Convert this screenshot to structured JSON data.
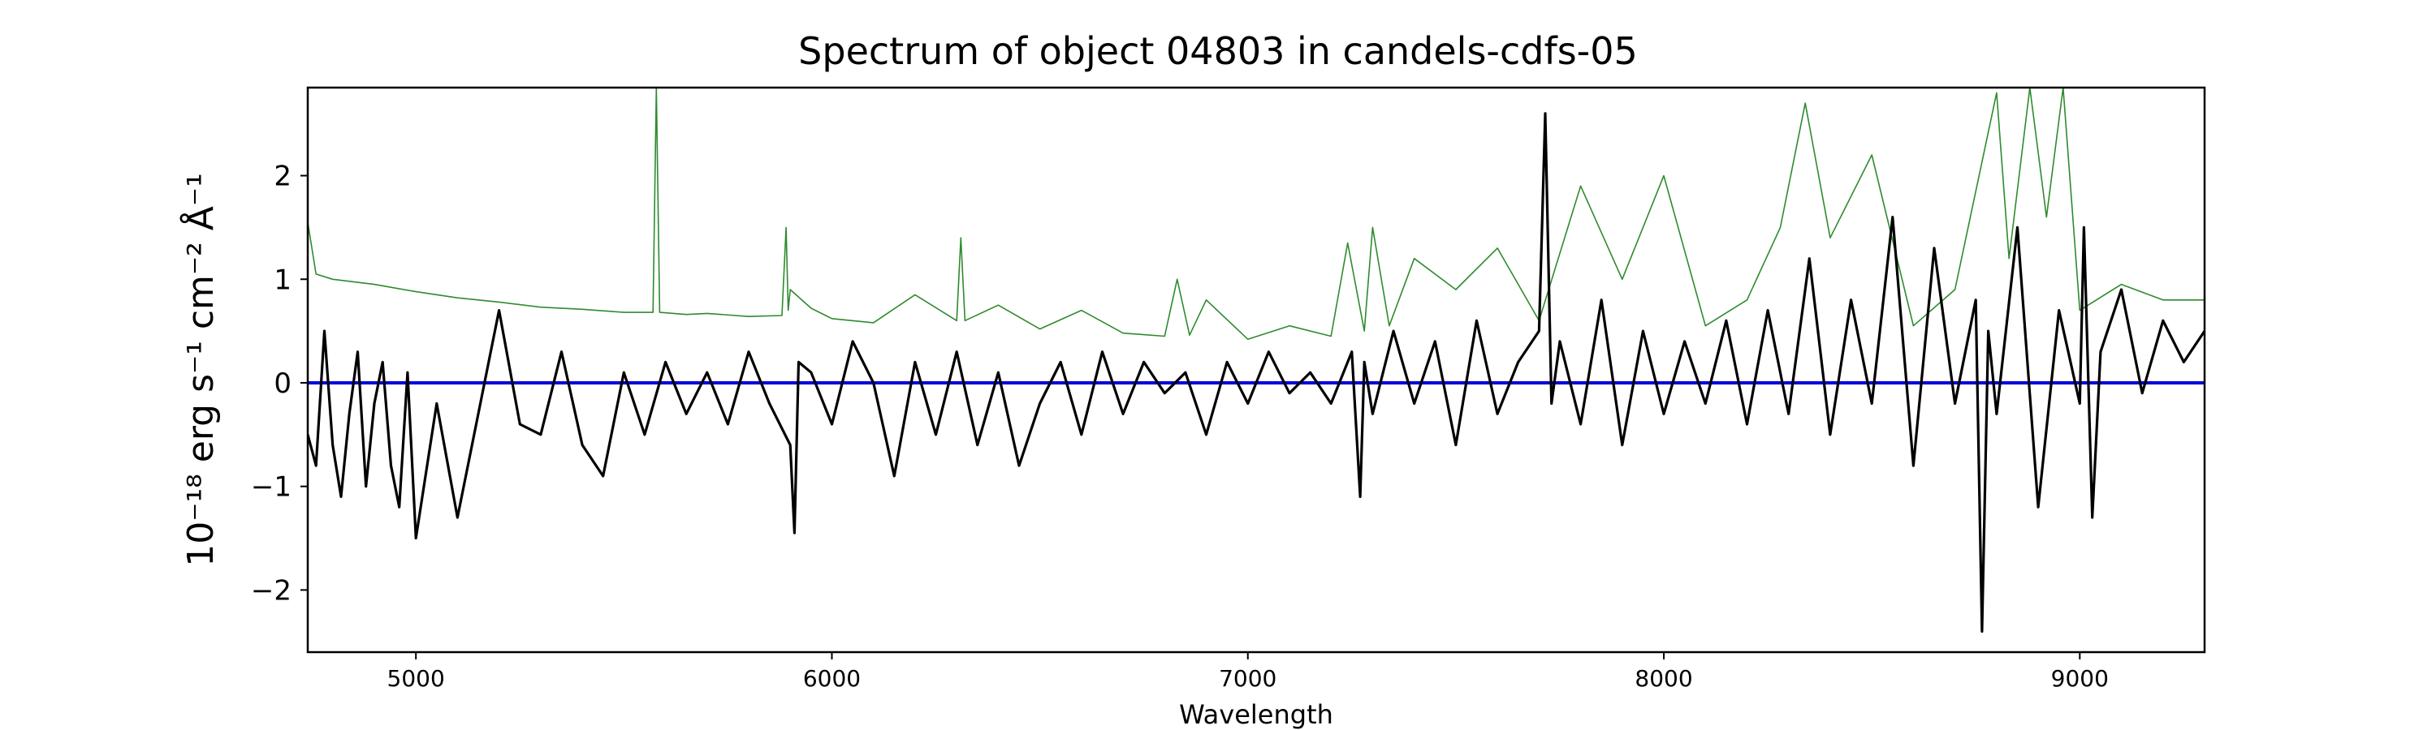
{
  "chart_data": {
    "type": "line",
    "title": "Spectrum of object 04803 in candels-cdfs-05",
    "xlabel": "Wavelength",
    "ylabel": "10⁻¹⁸ erg s⁻¹ cm⁻² Å⁻¹",
    "xlim": [
      4740,
      9300
    ],
    "ylim": [
      -2.6,
      2.85
    ],
    "xticks": [
      5000,
      6000,
      7000,
      8000,
      9000
    ],
    "xtick_labels": [
      "5000",
      "6000",
      "7000",
      "8000",
      "9000"
    ],
    "yticks": [
      -2,
      -1,
      0,
      1,
      2
    ],
    "ytick_labels": [
      "−2",
      "−1",
      "0",
      "1",
      "2"
    ],
    "grid": false,
    "series": [
      {
        "color": "#2e8b2e",
        "style": "thin",
        "x": [
          4740,
          4760,
          4800,
          4900,
          5000,
          5100,
          5200,
          5300,
          5400,
          5500,
          5570,
          5578,
          5586,
          5650,
          5700,
          5800,
          5880,
          5890,
          5895,
          5900,
          5950,
          6000,
          6100,
          6200,
          6300,
          6310,
          6320,
          6400,
          6500,
          6600,
          6700,
          6800,
          6830,
          6860,
          6900,
          7000,
          7100,
          7200,
          7240,
          7280,
          7300,
          7340,
          7400,
          7500,
          7600,
          7700,
          7800,
          7900,
          8000,
          8100,
          8200,
          8280,
          8340,
          8400,
          8500,
          8600,
          8700,
          8800,
          8830,
          8880,
          8920,
          8960,
          9000,
          9100,
          9200,
          9300
        ],
        "values": [
          1.55,
          1.05,
          1.0,
          0.95,
          0.88,
          0.82,
          0.78,
          0.73,
          0.71,
          0.68,
          0.68,
          2.85,
          0.68,
          0.66,
          0.67,
          0.64,
          0.65,
          1.5,
          0.7,
          0.9,
          0.72,
          0.62,
          0.58,
          0.85,
          0.6,
          1.4,
          0.6,
          0.75,
          0.52,
          0.7,
          0.48,
          0.45,
          1.0,
          0.46,
          0.8,
          0.42,
          0.55,
          0.45,
          1.35,
          0.5,
          1.5,
          0.55,
          1.2,
          0.9,
          1.3,
          0.6,
          1.9,
          1.0,
          2.0,
          0.55,
          0.8,
          1.5,
          2.7,
          1.4,
          2.2,
          0.55,
          0.9,
          2.8,
          1.2,
          2.85,
          1.6,
          2.85,
          0.7,
          0.95,
          0.8,
          0.8
        ]
      },
      {
        "color": "#0000dd",
        "style": "flat",
        "x": [
          4740,
          9300
        ],
        "values": [
          0,
          0
        ]
      },
      {
        "color": "#000000",
        "style": "thick",
        "x": [
          4740,
          4760,
          4780,
          4800,
          4820,
          4840,
          4860,
          4880,
          4900,
          4920,
          4940,
          4960,
          4980,
          5000,
          5050,
          5100,
          5150,
          5200,
          5250,
          5300,
          5350,
          5400,
          5450,
          5500,
          5550,
          5600,
          5650,
          5700,
          5750,
          5800,
          5850,
          5900,
          5910,
          5920,
          5950,
          6000,
          6050,
          6100,
          6150,
          6200,
          6250,
          6300,
          6350,
          6400,
          6450,
          6500,
          6550,
          6600,
          6650,
          6700,
          6750,
          6800,
          6850,
          6900,
          6950,
          7000,
          7050,
          7100,
          7150,
          7200,
          7250,
          7270,
          7280,
          7300,
          7350,
          7400,
          7450,
          7500,
          7550,
          7600,
          7650,
          7700,
          7715,
          7730,
          7750,
          7800,
          7850,
          7900,
          7950,
          8000,
          8050,
          8100,
          8150,
          8200,
          8250,
          8300,
          8350,
          8400,
          8450,
          8500,
          8550,
          8600,
          8650,
          8700,
          8750,
          8765,
          8780,
          8800,
          8850,
          8900,
          8950,
          9000,
          9010,
          9030,
          9050,
          9100,
          9150,
          9200,
          9250,
          9300
        ],
        "values": [
          -0.5,
          -0.8,
          0.5,
          -0.6,
          -1.1,
          -0.3,
          0.3,
          -1.0,
          -0.2,
          0.2,
          -0.8,
          -1.2,
          0.1,
          -1.5,
          -0.2,
          -1.3,
          -0.3,
          0.7,
          -0.4,
          -0.5,
          0.3,
          -0.6,
          -0.9,
          0.1,
          -0.5,
          0.2,
          -0.3,
          0.1,
          -0.4,
          0.3,
          -0.2,
          -0.6,
          -1.45,
          0.2,
          0.1,
          -0.4,
          0.4,
          0.0,
          -0.9,
          0.2,
          -0.5,
          0.3,
          -0.6,
          0.1,
          -0.8,
          -0.2,
          0.2,
          -0.5,
          0.3,
          -0.3,
          0.2,
          -0.1,
          0.1,
          -0.5,
          0.2,
          -0.2,
          0.3,
          -0.1,
          0.1,
          -0.2,
          0.3,
          -1.1,
          0.2,
          -0.3,
          0.5,
          -0.2,
          0.4,
          -0.6,
          0.6,
          -0.3,
          0.2,
          0.5,
          2.6,
          -0.2,
          0.4,
          -0.4,
          0.8,
          -0.6,
          0.5,
          -0.3,
          0.4,
          -0.2,
          0.6,
          -0.4,
          0.7,
          -0.3,
          1.2,
          -0.5,
          0.8,
          -0.2,
          1.6,
          -0.8,
          1.3,
          -0.2,
          0.8,
          -2.4,
          0.5,
          -0.3,
          1.5,
          -1.2,
          0.7,
          -0.2,
          1.5,
          -1.3,
          0.3,
          0.9,
          -0.1,
          0.6,
          0.2,
          0.5
        ]
      }
    ]
  }
}
